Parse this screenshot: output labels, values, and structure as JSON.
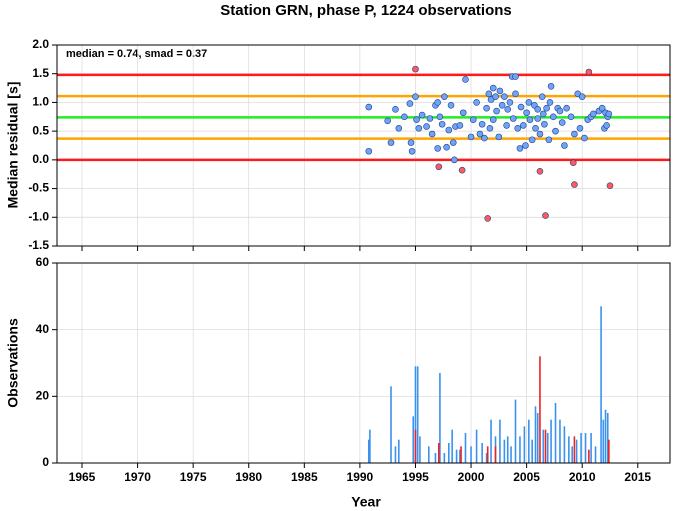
{
  "chart_data": [
    {
      "type": "scatter",
      "title": "Station GRN, phase P, 1224 observations",
      "annotation": "median = 0.74, smad = 0.37",
      "ylabel": "Median residual [s]",
      "xlim": [
        1962.75,
        2017.9
      ],
      "ylim": [
        -1.5,
        2.0
      ],
      "xticks": [
        1965,
        1970,
        1975,
        1980,
        1985,
        1990,
        1995,
        2000,
        2005,
        2010,
        2015
      ],
      "yticks": [
        {
          "value": 2.0,
          "label": "2.0"
        },
        {
          "value": 1.5,
          "label": "1.5"
        },
        {
          "value": 1.0,
          "label": "1.0"
        },
        {
          "value": 0.5,
          "label": "0.5"
        },
        {
          "value": 0.0,
          "label": "0.0"
        },
        {
          "value": -0.5,
          "label": "-0.5"
        },
        {
          "value": -1.0,
          "label": "-1.0"
        },
        {
          "value": -1.5,
          "label": "-1.5"
        }
      ],
      "grid": true,
      "hlines": [
        {
          "value": 1.48,
          "color": "#ff1a1a"
        },
        {
          "value": 1.11,
          "color": "#ffa500"
        },
        {
          "value": 0.74,
          "color": "#22ee22"
        },
        {
          "value": 0.37,
          "color": "#ffa500"
        },
        {
          "value": 0.0,
          "color": "#ff1a1a"
        }
      ],
      "series": [
        {
          "color": "#6ea3f5",
          "x": [
            1990.8,
            1990.8,
            1992.5,
            1992.8,
            1993.2,
            1993.5,
            1994,
            1994.5,
            1994.6,
            1994.7,
            1995,
            1995.1,
            1995.3,
            1995.6,
            1996,
            1996.3,
            1996.5,
            1996.8,
            1997,
            1997,
            1997.2,
            1997.4,
            1997.6,
            1997.8,
            1998,
            1998.2,
            1998.4,
            1998.5,
            1998.6,
            1999,
            1999.3,
            1999.5,
            2000,
            2000.2,
            2000.5,
            2000.8,
            2001,
            2001.2,
            2001.4,
            2001.6,
            2001.7,
            2001.8,
            2002,
            2002,
            2002.2,
            2002.3,
            2002.5,
            2002.6,
            2002.8,
            2003,
            2003.2,
            2003.3,
            2003.5,
            2003.7,
            2003.8,
            2004,
            2004,
            2004.2,
            2004.4,
            2004.5,
            2004.7,
            2004.9,
            2005,
            2005.2,
            2005.3,
            2005.5,
            2005.7,
            2005.8,
            2006,
            2006,
            2006.2,
            2006.4,
            2006.5,
            2006.6,
            2006.8,
            2007,
            2007.1,
            2007.2,
            2007.4,
            2007.6,
            2007.8,
            2008,
            2008.2,
            2008.4,
            2008.6,
            2009,
            2009.3,
            2009.6,
            2009.8,
            2010,
            2010.2,
            2010.5,
            2010.8,
            2011,
            2011.5,
            2011.8,
            2012,
            2012.1,
            2012.2,
            2012.3,
            2012.4
          ],
          "values": [
            0.92,
            0.15,
            0.68,
            0.3,
            0.88,
            0.55,
            0.75,
            0.98,
            0.3,
            0.15,
            1.1,
            0.7,
            0.55,
            0.78,
            0.58,
            0.72,
            0.45,
            0.95,
            1.0,
            0.2,
            0.75,
            0.62,
            1.1,
            0.22,
            0.52,
            0.95,
            0.3,
            0.0,
            0.58,
            0.6,
            0.82,
            1.4,
            0.4,
            0.7,
            1.0,
            0.45,
            0.62,
            0.38,
            0.9,
            1.15,
            0.55,
            1.05,
            1.25,
            0.7,
            1.1,
            0.85,
            0.4,
            1.2,
            0.95,
            1.1,
            0.6,
            0.88,
            1.0,
            1.45,
            0.72,
            1.15,
            1.45,
            0.55,
            0.2,
            0.92,
            0.6,
            0.25,
            0.82,
            1.0,
            0.7,
            0.35,
            0.95,
            0.55,
            0.88,
            0.72,
            0.45,
            1.1,
            0.8,
            0.62,
            0.9,
            0.35,
            1.0,
            1.28,
            0.75,
            0.5,
            0.9,
            0.85,
            0.65,
            0.25,
            0.9,
            0.75,
            0.45,
            1.15,
            0.55,
            1.1,
            0.38,
            0.7,
            0.75,
            0.8,
            0.85,
            0.9,
            0.55,
            0.82,
            0.6,
            0.75,
            0.8
          ]
        },
        {
          "color": "#ff5a5a",
          "x": [
            1995,
            1997.1,
            1999.2,
            2001.5,
            2006.2,
            2006.7,
            2009.2,
            2009.3,
            2010.6,
            2012.5
          ],
          "values": [
            1.58,
            -0.12,
            -0.18,
            -1.02,
            -0.2,
            -0.97,
            -0.05,
            -0.43,
            1.53,
            -0.45
          ]
        }
      ]
    },
    {
      "type": "bar",
      "ylabel": "Observations",
      "xlabel": "Year",
      "xlim": [
        1962.75,
        2017.9
      ],
      "ylim": [
        0,
        60
      ],
      "xticks": [
        1965,
        1970,
        1975,
        1980,
        1985,
        1990,
        1995,
        2000,
        2005,
        2010,
        2015
      ],
      "yticks": [
        0,
        20,
        40,
        60
      ],
      "grid": true,
      "series": [
        {
          "color": "#3a92ee",
          "x": [
            1990.8,
            1990.9,
            1992.8,
            1993.2,
            1993.5,
            1994.8,
            1995,
            1995.2,
            1995.4,
            1996.2,
            1996.8,
            1997.2,
            1997.6,
            1998,
            1998.3,
            1998.7,
            1999,
            1999.5,
            2000,
            2000.5,
            2001,
            2001.4,
            2001.8,
            2002.2,
            2002.6,
            2003,
            2003.3,
            2003.6,
            2004,
            2004.4,
            2004.8,
            2005.2,
            2005.5,
            2005.8,
            2006,
            2006.5,
            2006.9,
            2007.2,
            2007.6,
            2008,
            2008.4,
            2008.8,
            2009.1,
            2009.5,
            2009.9,
            2010.3,
            2010.8,
            2011.2,
            2011.7,
            2011.9,
            2012.1,
            2012.3
          ],
          "values": [
            7,
            10,
            23,
            5,
            7,
            14,
            29,
            29,
            8,
            5,
            3,
            27,
            3,
            6,
            10,
            4,
            4,
            9,
            5,
            10,
            6,
            3,
            13,
            8,
            13,
            7,
            8,
            5,
            19,
            8,
            11,
            13,
            7,
            17,
            15,
            10,
            9,
            13,
            18,
            13,
            11,
            8,
            5,
            7,
            9,
            9,
            9,
            5,
            47,
            13,
            16,
            15
          ]
        },
        {
          "color": "#ee2222",
          "x": [
            1995,
            1997.1,
            1999.1,
            2001.5,
            2002.2,
            2006.2,
            2006.7,
            2009.3,
            2010.6,
            2012.4
          ],
          "values": [
            10,
            6,
            5,
            5,
            5,
            32,
            10,
            8,
            4,
            7
          ]
        }
      ]
    }
  ]
}
